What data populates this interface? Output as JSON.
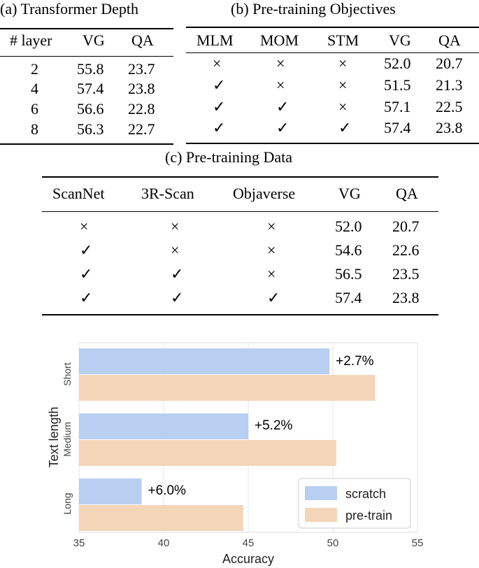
{
  "table_a": {
    "caption": "(a) Transformer Depth",
    "headers": [
      "# layer",
      "VG",
      "QA"
    ],
    "rows": [
      [
        "2",
        "55.8",
        "23.7"
      ],
      [
        "4",
        "57.4",
        "23.8"
      ],
      [
        "6",
        "56.6",
        "22.8"
      ],
      [
        "8",
        "56.3",
        "22.7"
      ]
    ]
  },
  "table_b": {
    "caption": "(b) Pre-training Objectives",
    "headers": [
      "MLM",
      "MOM",
      "STM",
      "VG",
      "QA"
    ],
    "rows": [
      [
        "×",
        "×",
        "×",
        "52.0",
        "20.7"
      ],
      [
        "✓",
        "×",
        "×",
        "51.5",
        "21.3"
      ],
      [
        "✓",
        "✓",
        "×",
        "57.1",
        "22.5"
      ],
      [
        "✓",
        "✓",
        "✓",
        "57.4",
        "23.8"
      ]
    ]
  },
  "table_c": {
    "caption": "(c) Pre-training Data",
    "headers": [
      "ScanNet",
      "3R-Scan",
      "Objaverse",
      "VG",
      "QA"
    ],
    "rows": [
      [
        "×",
        "×",
        "×",
        "52.0",
        "20.7"
      ],
      [
        "✓",
        "×",
        "×",
        "54.6",
        "22.6"
      ],
      [
        "✓",
        "✓",
        "×",
        "56.5",
        "23.5"
      ],
      [
        "✓",
        "✓",
        "✓",
        "57.4",
        "23.8"
      ]
    ]
  },
  "chart_data": {
    "type": "bar",
    "orientation": "horizontal",
    "categories": [
      "Short",
      "Medium",
      "Long"
    ],
    "series": [
      {
        "name": "scratch",
        "values": [
          49.8,
          45.0,
          38.7
        ]
      },
      {
        "name": "pre-train",
        "values": [
          52.5,
          50.2,
          44.7
        ]
      }
    ],
    "annotations": [
      "+2.7%",
      "+5.2%",
      "+6.0%"
    ],
    "xlabel": "Accuracy",
    "ylabel": "Text length",
    "xlim": [
      35,
      55
    ],
    "xticks": [
      "35",
      "40",
      "45",
      "50",
      "55"
    ],
    "grid": true,
    "legend": "bottom-right",
    "colors": {
      "scratch": "#b8cff2",
      "pre-train": "#f4d5b8"
    }
  }
}
